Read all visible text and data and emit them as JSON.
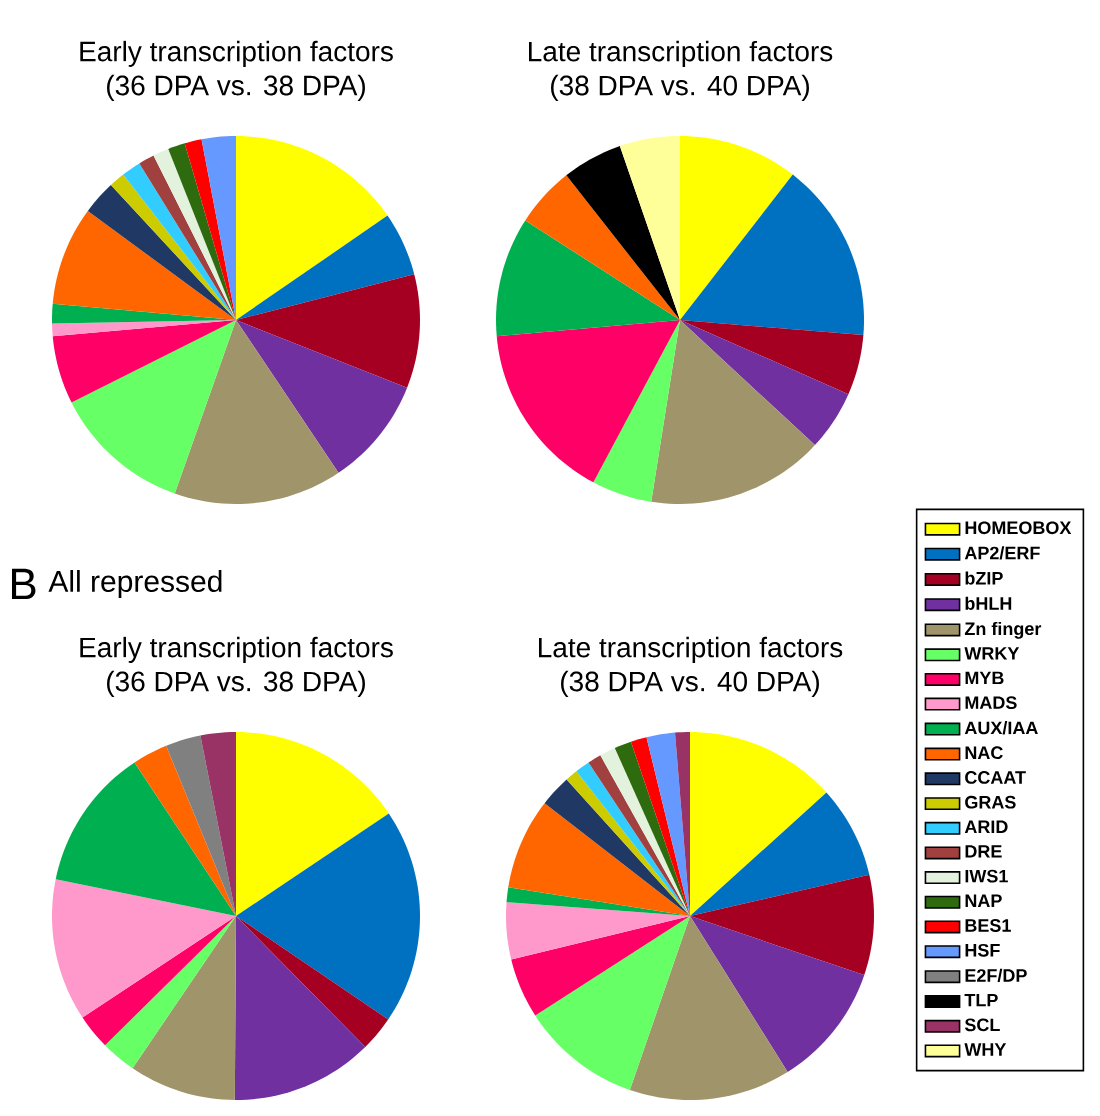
{
  "chart_data": [
    {
      "type": "pie",
      "title": "Early transcription factors",
      "subtitle": "(36 DPA vs. 38 DPA)",
      "categories": [
        null,
        null,
        null,
        null,
        null,
        null,
        null,
        null,
        null,
        null,
        null,
        null,
        null,
        null,
        null,
        null,
        null,
        null,
        null,
        null,
        null,
        null
      ],
      "values": [
        15.4,
        5.6,
        10,
        9.6,
        14.8,
        12.2,
        6,
        1.1,
        1.7,
        8.7,
        3,
        1.4,
        1.7,
        1.4,
        1.4,
        1.5,
        1.5,
        3,
        0,
        0,
        0,
        0
      ],
      "colors": [
        "#ffff00",
        "#0070c0",
        "#a50021",
        "#7030a0",
        "#a0956a",
        "#66ff66",
        "#ff0066",
        "#ff99cc",
        "#00b050",
        "#ff6600",
        "#1f3864",
        "#cccc00",
        "#33ccff",
        "#a0403f",
        "#e2f2dc",
        "#2e6b0e",
        "#ff0000",
        "#6699ff",
        "#808080",
        "#000000",
        "#993366",
        "#ffff99"
      ]
    },
    {
      "type": "pie",
      "title": "Late transcription factors",
      "subtitle": "(38 DPA vs. 40 DPA)",
      "legend": "right",
      "categories": [
        "HOMEOBOX",
        "AP2/ERF",
        "bZIP",
        "bHLH",
        "Zn finger",
        "WRKY",
        "MYB",
        "MADS",
        "AUX/IAA",
        "NAC",
        "CCAAT",
        "GRAS",
        "ARID",
        "DRE",
        "IWS1",
        "NAP",
        "BES1",
        "HSF",
        "E2F/DP",
        "TLP",
        "SCL",
        "WHY"
      ],
      "values": [
        10.5,
        15.8,
        5.3,
        5.3,
        15.6,
        5.3,
        15.8,
        0,
        10.5,
        5.3,
        0,
        0,
        0,
        0,
        0,
        0,
        0,
        0,
        0,
        5.3,
        0,
        5.3
      ],
      "colors": [
        "#ffff00",
        "#0070c0",
        "#a50021",
        "#7030a0",
        "#a0956a",
        "#66ff66",
        "#ff0066",
        "#ff99cc",
        "#00b050",
        "#ff6600",
        "#1f3864",
        "#cccc00",
        "#33ccff",
        "#a0403f",
        "#e2f2dc",
        "#2e6b0e",
        "#ff0000",
        "#6699ff",
        "#808080",
        "#000000",
        "#993366",
        "#ffff99"
      ]
    },
    {
      "type": "pie",
      "title": "Early transcription factors",
      "subtitle": "(36 DPA vs. 38 DPA)",
      "annotations": [
        "B",
        "All repressed"
      ],
      "categories": [
        null,
        null,
        null,
        null,
        null,
        null,
        null,
        null,
        null,
        null,
        null,
        null,
        null,
        null,
        null,
        null,
        null,
        null,
        null,
        null,
        null,
        null
      ],
      "values": [
        15.6,
        18.9,
        3.1,
        12.5,
        9.4,
        3.1,
        3.1,
        12.5,
        12.5,
        3.1,
        0,
        0,
        0,
        0,
        0,
        0,
        0,
        0,
        3.1,
        0,
        3.1,
        0
      ],
      "colors": [
        "#ffff00",
        "#0070c0",
        "#a50021",
        "#7030a0",
        "#a0956a",
        "#66ff66",
        "#ff0066",
        "#ff99cc",
        "#00b050",
        "#ff6600",
        "#1f3864",
        "#cccc00",
        "#33ccff",
        "#a0403f",
        "#e2f2dc",
        "#2e6b0e",
        "#ff0000",
        "#6699ff",
        "#808080",
        "#000000",
        "#993366",
        "#ffff99"
      ]
    },
    {
      "type": "pie",
      "title": "Late transcription factors",
      "subtitle": "(38 DPA vs. 40 DPA)",
      "categories": [
        null,
        null,
        null,
        null,
        null,
        null,
        null,
        null,
        null,
        null,
        null,
        null,
        null,
        null,
        null,
        null,
        null,
        null,
        null,
        null,
        null,
        null
      ],
      "values": [
        13.3,
        8.1,
        8.8,
        10.9,
        14.2,
        10.6,
        5.3,
        5,
        1.3,
        8,
        2.8,
        1.1,
        1.3,
        1.2,
        1.4,
        1.5,
        1.4,
        2.5,
        0,
        0,
        1.3,
        0
      ],
      "colors": [
        "#ffff00",
        "#0070c0",
        "#a50021",
        "#7030a0",
        "#a0956a",
        "#66ff66",
        "#ff0066",
        "#ff99cc",
        "#00b050",
        "#ff6600",
        "#1f3864",
        "#cccc00",
        "#33ccff",
        "#a0403f",
        "#e2f2dc",
        "#2e6b0e",
        "#ff0000",
        "#6699ff",
        "#808080",
        "#000000",
        "#993366",
        "#ffff99"
      ]
    }
  ]
}
